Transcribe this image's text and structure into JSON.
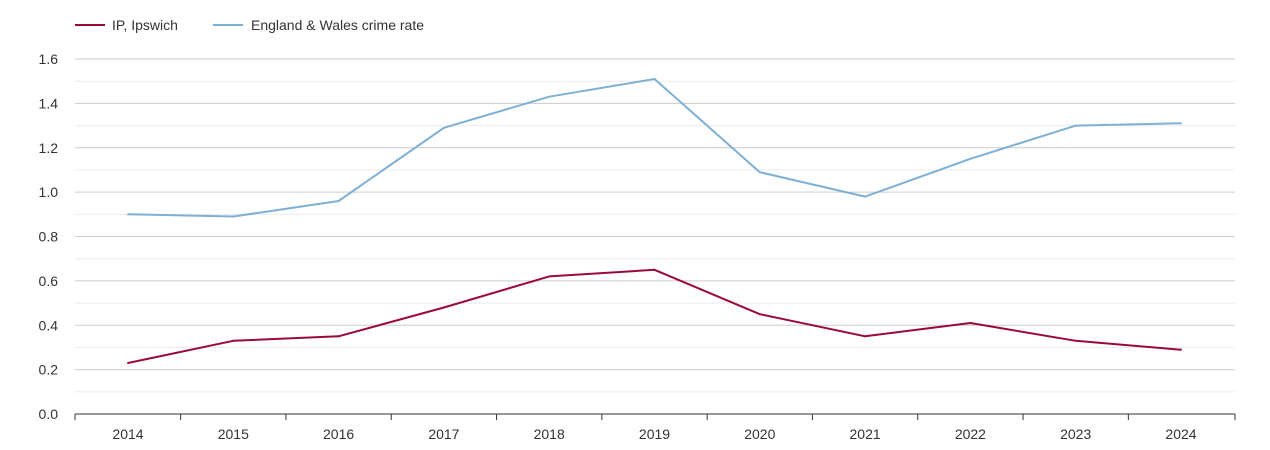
{
  "chart_data": {
    "type": "line",
    "title": "",
    "xlabel": "",
    "ylabel": "",
    "x": [
      "2014",
      "2015",
      "2016",
      "2017",
      "2018",
      "2019",
      "2020",
      "2021",
      "2022",
      "2023",
      "2024"
    ],
    "ylim": [
      0,
      1.6
    ],
    "yticks": [
      "0.0",
      "0.2",
      "0.4",
      "0.6",
      "0.8",
      "1.0",
      "1.2",
      "1.4",
      "1.6"
    ],
    "grid": true,
    "legend_position": "top-left",
    "series": [
      {
        "name": "IP, Ipswich",
        "color": "#9b0a36",
        "values": [
          0.23,
          0.33,
          0.35,
          0.48,
          0.62,
          0.65,
          0.45,
          0.35,
          0.41,
          0.33,
          0.29
        ]
      },
      {
        "name": "England & Wales crime rate",
        "color": "#7eb0d4",
        "values": [
          0.9,
          0.89,
          0.96,
          1.29,
          1.43,
          1.51,
          1.09,
          0.98,
          1.15,
          1.3,
          1.31
        ]
      }
    ]
  }
}
